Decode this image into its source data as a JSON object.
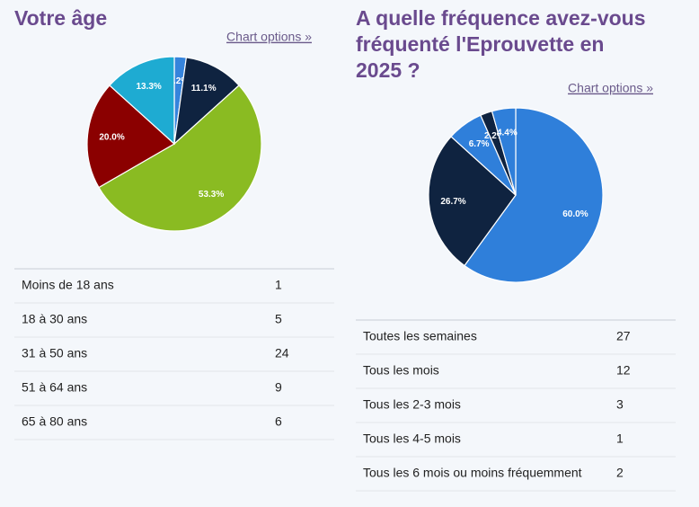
{
  "chart_data": [
    {
      "type": "pie",
      "title": "Votre âge",
      "categories": [
        "Moins de 18 ans",
        "18 à 30 ans",
        "31 à 50 ans",
        "51 à 64 ans",
        "65 à 80 ans"
      ],
      "values": [
        2.2,
        11.1,
        53.3,
        20.0,
        13.3
      ],
      "value_labels": [
        "2.2%",
        "11.1%",
        "53.3%",
        "20.0%",
        "13.3%"
      ],
      "colors": [
        "#3684dc",
        "#0f2340",
        "#8abb22",
        "#8b0000",
        "#1eabd2"
      ]
    },
    {
      "type": "pie",
      "title": "A quelle fréquence avez-vous fréquenté l'Eprouvette en 2025 ?",
      "categories": [
        "Toutes les semaines",
        "Tous les mois",
        "Tous les 2-3 mois",
        "Tous les 4-5 mois",
        "Tous les 6 mois ou moins fréquemment"
      ],
      "values": [
        60.0,
        26.7,
        6.7,
        2.2,
        4.4
      ],
      "value_labels": [
        "60.0%",
        "26.7%",
        "6.7%",
        "2.2%",
        "4.4%"
      ],
      "colors": [
        "#2f7fda",
        "#0f2340",
        "#2f7fda",
        "#0f2340",
        "#2f7fda"
      ]
    }
  ],
  "links": [
    "Chart options »",
    "Chart options »"
  ],
  "tables": [
    {
      "rows": [
        [
          "Moins de 18 ans",
          "1"
        ],
        [
          "18 à 30 ans",
          "5"
        ],
        [
          "31 à 50 ans",
          "24"
        ],
        [
          "51 à 64 ans",
          "9"
        ],
        [
          "65 à 80 ans",
          "6"
        ]
      ]
    },
    {
      "rows": [
        [
          "Toutes les semaines",
          "27"
        ],
        [
          "Tous les mois",
          "12"
        ],
        [
          "Tous les 2-3 mois",
          "3"
        ],
        [
          "Tous les 4-5 mois",
          "1"
        ],
        [
          "Tous les 6 mois ou moins fréquemment",
          "2"
        ]
      ]
    }
  ]
}
